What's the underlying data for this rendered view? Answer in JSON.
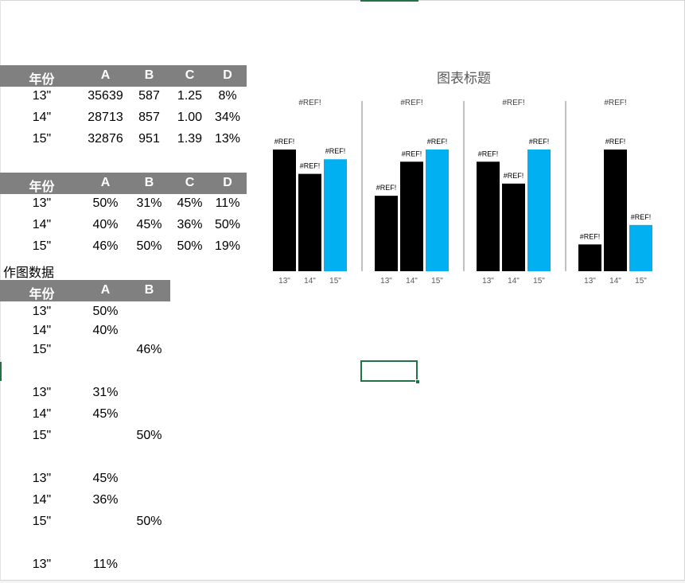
{
  "table1": {
    "headers": [
      "年份",
      "A",
      "B",
      "C",
      "D"
    ],
    "rows": [
      [
        "13\"",
        "35639",
        "587",
        "1.25",
        "8%"
      ],
      [
        "14\"",
        "28713",
        "857",
        "1.00",
        "34%"
      ],
      [
        "15\"",
        "32876",
        "951",
        "1.39",
        "13%"
      ]
    ]
  },
  "table2": {
    "headers": [
      "年份",
      "A",
      "B",
      "C",
      "D"
    ],
    "rows": [
      [
        "13\"",
        "50%",
        "31%",
        "45%",
        "11%"
      ],
      [
        "14\"",
        "40%",
        "45%",
        "36%",
        "50%"
      ],
      [
        "15\"",
        "46%",
        "50%",
        "50%",
        "19%"
      ]
    ]
  },
  "plot_data_label": "作图数据",
  "table3": {
    "headers": [
      "年份",
      "A",
      "B"
    ],
    "rows": [
      [
        "13\"",
        "50%",
        ""
      ],
      [
        "14\"",
        "40%",
        ""
      ],
      [
        "15\"",
        "",
        "46%"
      ],
      [
        "",
        "",
        ""
      ],
      [
        "13\"",
        "31%",
        ""
      ],
      [
        "14\"",
        "45%",
        ""
      ],
      [
        "15\"",
        "",
        "50%"
      ],
      [
        "",
        "",
        ""
      ],
      [
        "13\"",
        "45%",
        ""
      ],
      [
        "14\"",
        "36%",
        ""
      ],
      [
        "15\"",
        "",
        "50%"
      ],
      [
        "",
        "",
        ""
      ],
      [
        "13\"",
        "11%",
        ""
      ]
    ]
  },
  "colors": {
    "header_bg": "#808080",
    "bar_black": "#000000",
    "bar_blue": "#00b0f0",
    "active_cell": "#217346"
  },
  "chart_data": {
    "type": "bar",
    "title": "图表标题",
    "categories": [
      "13\"",
      "14\"",
      "15\""
    ],
    "ylim": [
      0,
      0.5
    ],
    "groups": [
      {
        "label": "#REF!",
        "values": [
          0.5,
          0.4,
          0.46
        ],
        "data_labels": [
          "#REF!",
          "#REF!",
          "#REF!"
        ]
      },
      {
        "label": "#REF!",
        "values": [
          0.31,
          0.45,
          0.5
        ],
        "data_labels": [
          "#REF!",
          "#REF!",
          "#REF!"
        ]
      },
      {
        "label": "#REF!",
        "values": [
          0.45,
          0.36,
          0.5
        ],
        "data_labels": [
          "#REF!",
          "#REF!",
          "#REF!"
        ]
      },
      {
        "label": "#REF!",
        "values": [
          0.11,
          0.5,
          0.19
        ],
        "data_labels": [
          "#REF!",
          "#REF!",
          "#REF!"
        ]
      }
    ],
    "bar_colors": [
      "#000000",
      "#000000",
      "#00b0f0"
    ],
    "grid": false,
    "legend": "none"
  }
}
